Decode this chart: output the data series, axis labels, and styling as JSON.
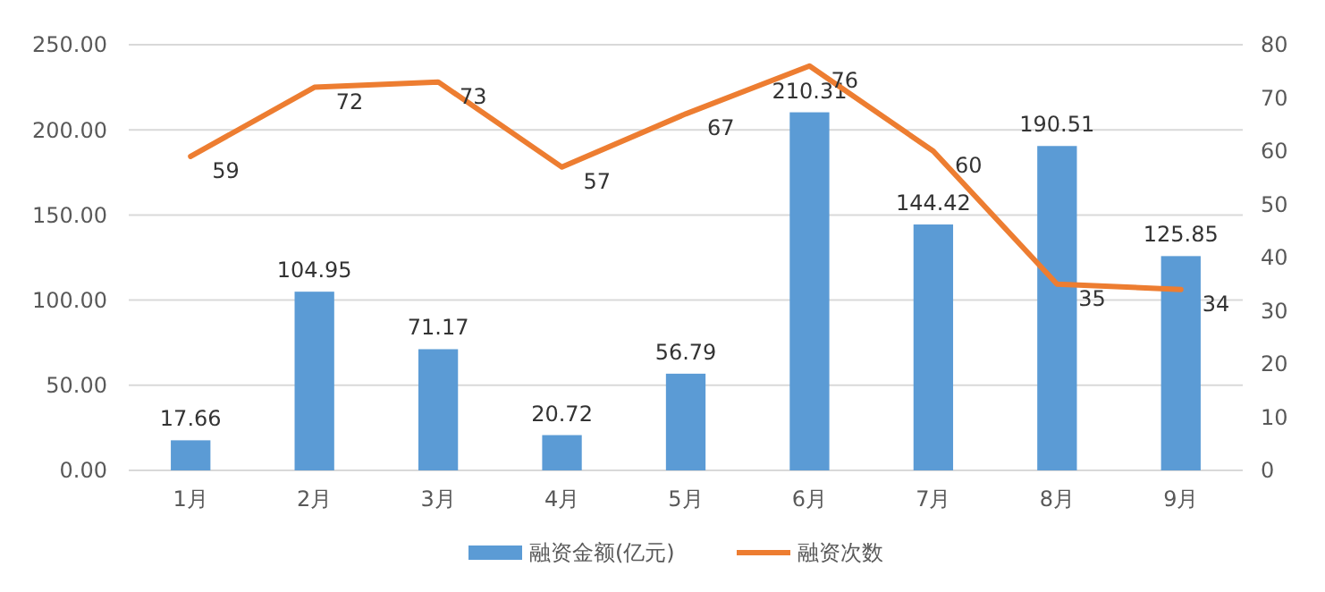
{
  "chart_data": {
    "type": "bar",
    "categories": [
      "1月",
      "2月",
      "3月",
      "4月",
      "5月",
      "6月",
      "7月",
      "8月",
      "9月"
    ],
    "series": [
      {
        "name": "融资金额(亿元)",
        "color": "#5b9bd5",
        "values": [
          17.66,
          104.95,
          71.17,
          20.72,
          56.79,
          210.31,
          144.42,
          190.51,
          125.85
        ]
      },
      {
        "name": "融资次数",
        "type": "line",
        "axis": "y2",
        "color": "#ed7d31",
        "values": [
          59,
          72,
          73,
          57,
          67,
          76,
          60,
          35,
          34
        ]
      }
    ],
    "ylim": [
      0,
      250
    ],
    "yticks": [
      {
        "value": 0,
        "label": "0.00"
      },
      {
        "value": 50,
        "label": "50.00"
      },
      {
        "value": 100,
        "label": "100.00"
      },
      {
        "value": 150,
        "label": "150.00"
      },
      {
        "value": 200,
        "label": "200.00"
      },
      {
        "value": 250,
        "label": "250.00"
      }
    ],
    "y2lim": [
      0,
      80
    ],
    "y2ticks": [
      0,
      10,
      20,
      30,
      40,
      50,
      60,
      70,
      80
    ],
    "grid": "y",
    "legend": "bottom",
    "data_labels": true,
    "marker": "none",
    "line_style": "solid"
  }
}
